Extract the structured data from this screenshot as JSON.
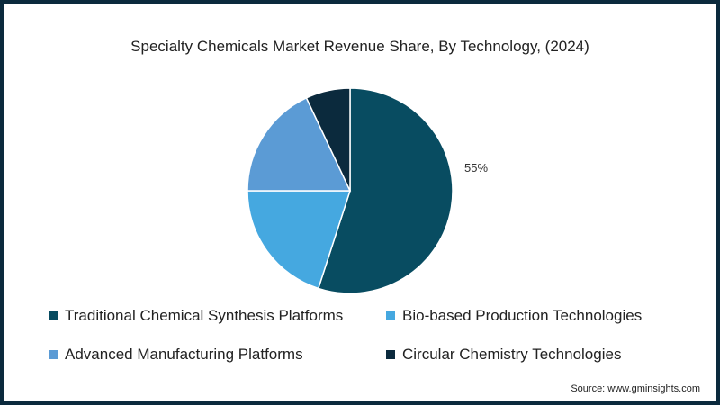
{
  "chart_data": {
    "type": "pie",
    "title": "Specialty Chemicals Market Revenue Share, By Technology, (2024)",
    "slices": [
      {
        "label": "Traditional Chemical Synthesis Platforms",
        "value": 55,
        "color": "#084c61",
        "data_label": "55%"
      },
      {
        "label": "Bio-based Production Technologies",
        "value": 20,
        "color": "#45a8e0"
      },
      {
        "label": "Advanced Manufacturing Platforms",
        "value": 18,
        "color": "#5b9bd5"
      },
      {
        "label": "Circular Chemistry Technologies",
        "value": 7,
        "color": "#0b2a3d"
      }
    ],
    "start_angle": "top",
    "direction": "clockwise",
    "legend_position": "bottom"
  },
  "source": "Source: www.gminsights.com"
}
